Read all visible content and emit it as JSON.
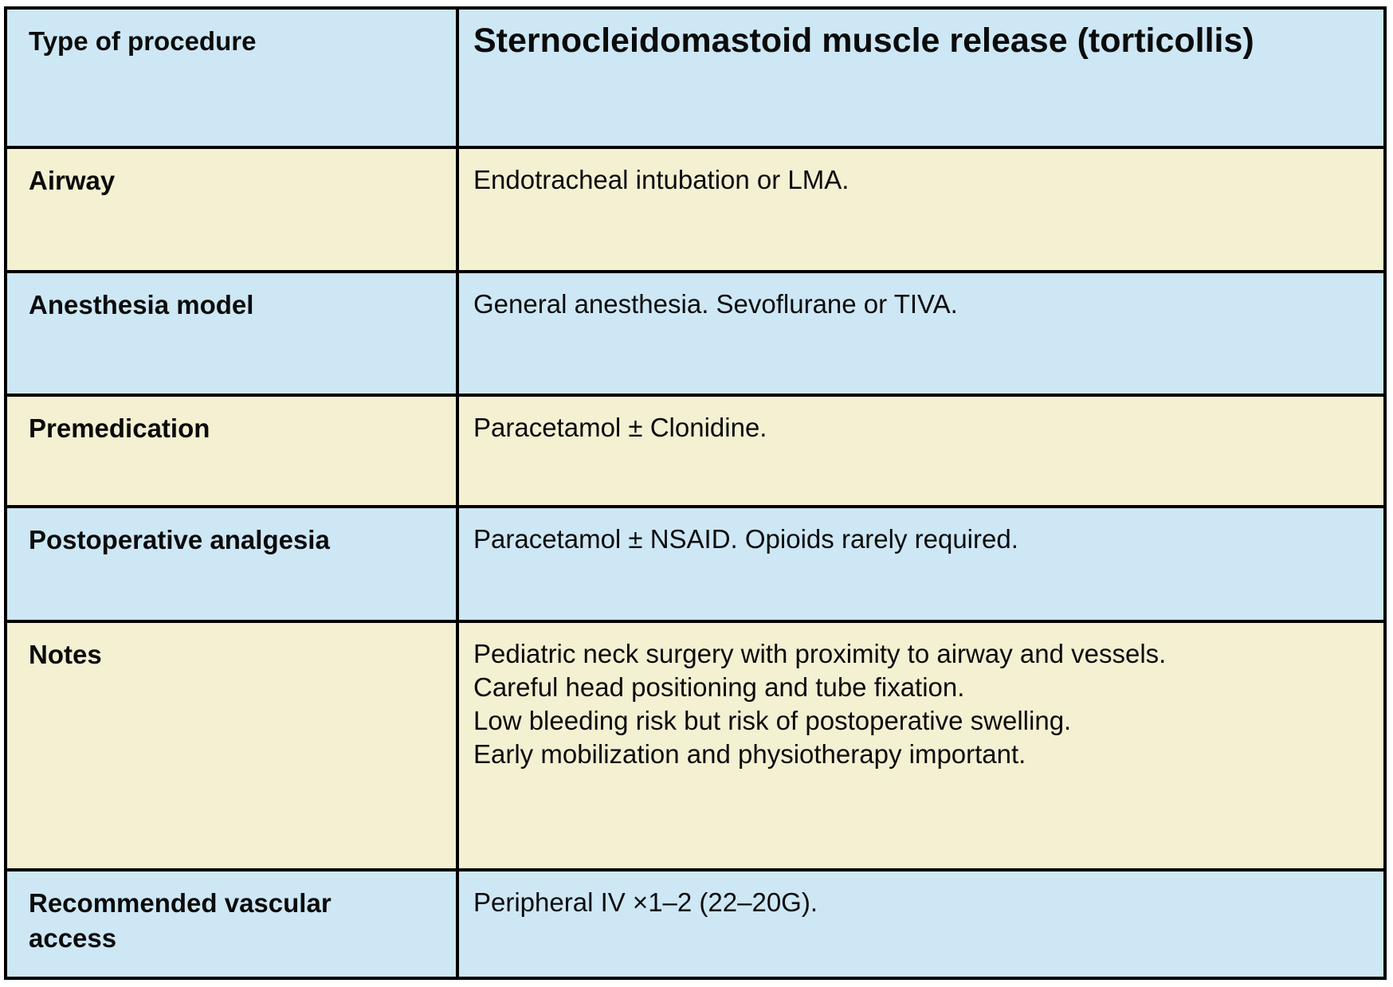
{
  "table": {
    "header": {
      "label": "Type of procedure",
      "value": "Sternocleidomastoid muscle release (torticollis)"
    },
    "rows": [
      {
        "label": "Airway",
        "value": "Endotracheal intubation or LMA."
      },
      {
        "label": "Anesthesia model",
        "value": "General anesthesia. Sevoflurane or TIVA."
      },
      {
        "label": "Premedication",
        "value": "Paracetamol ± Clonidine."
      },
      {
        "label": "Postoperative analgesia",
        "value": "Paracetamol ± NSAID. Opioids rarely required."
      },
      {
        "label": "Notes",
        "value": "Pediatric neck surgery with proximity to airway and vessels.\nCareful head positioning and tube fixation.\nLow bleeding risk but risk of postoperative swelling.\nEarly mobilization and physiotherapy important."
      },
      {
        "label": "Recommended vascular access",
        "value": "Peripheral IV ×1–2 (22–20G)."
      }
    ],
    "colors": {
      "row_blue": "#cde7f5",
      "row_cream": "#f4f0d2",
      "border": "#000000",
      "text": "#0b0b0b"
    }
  }
}
